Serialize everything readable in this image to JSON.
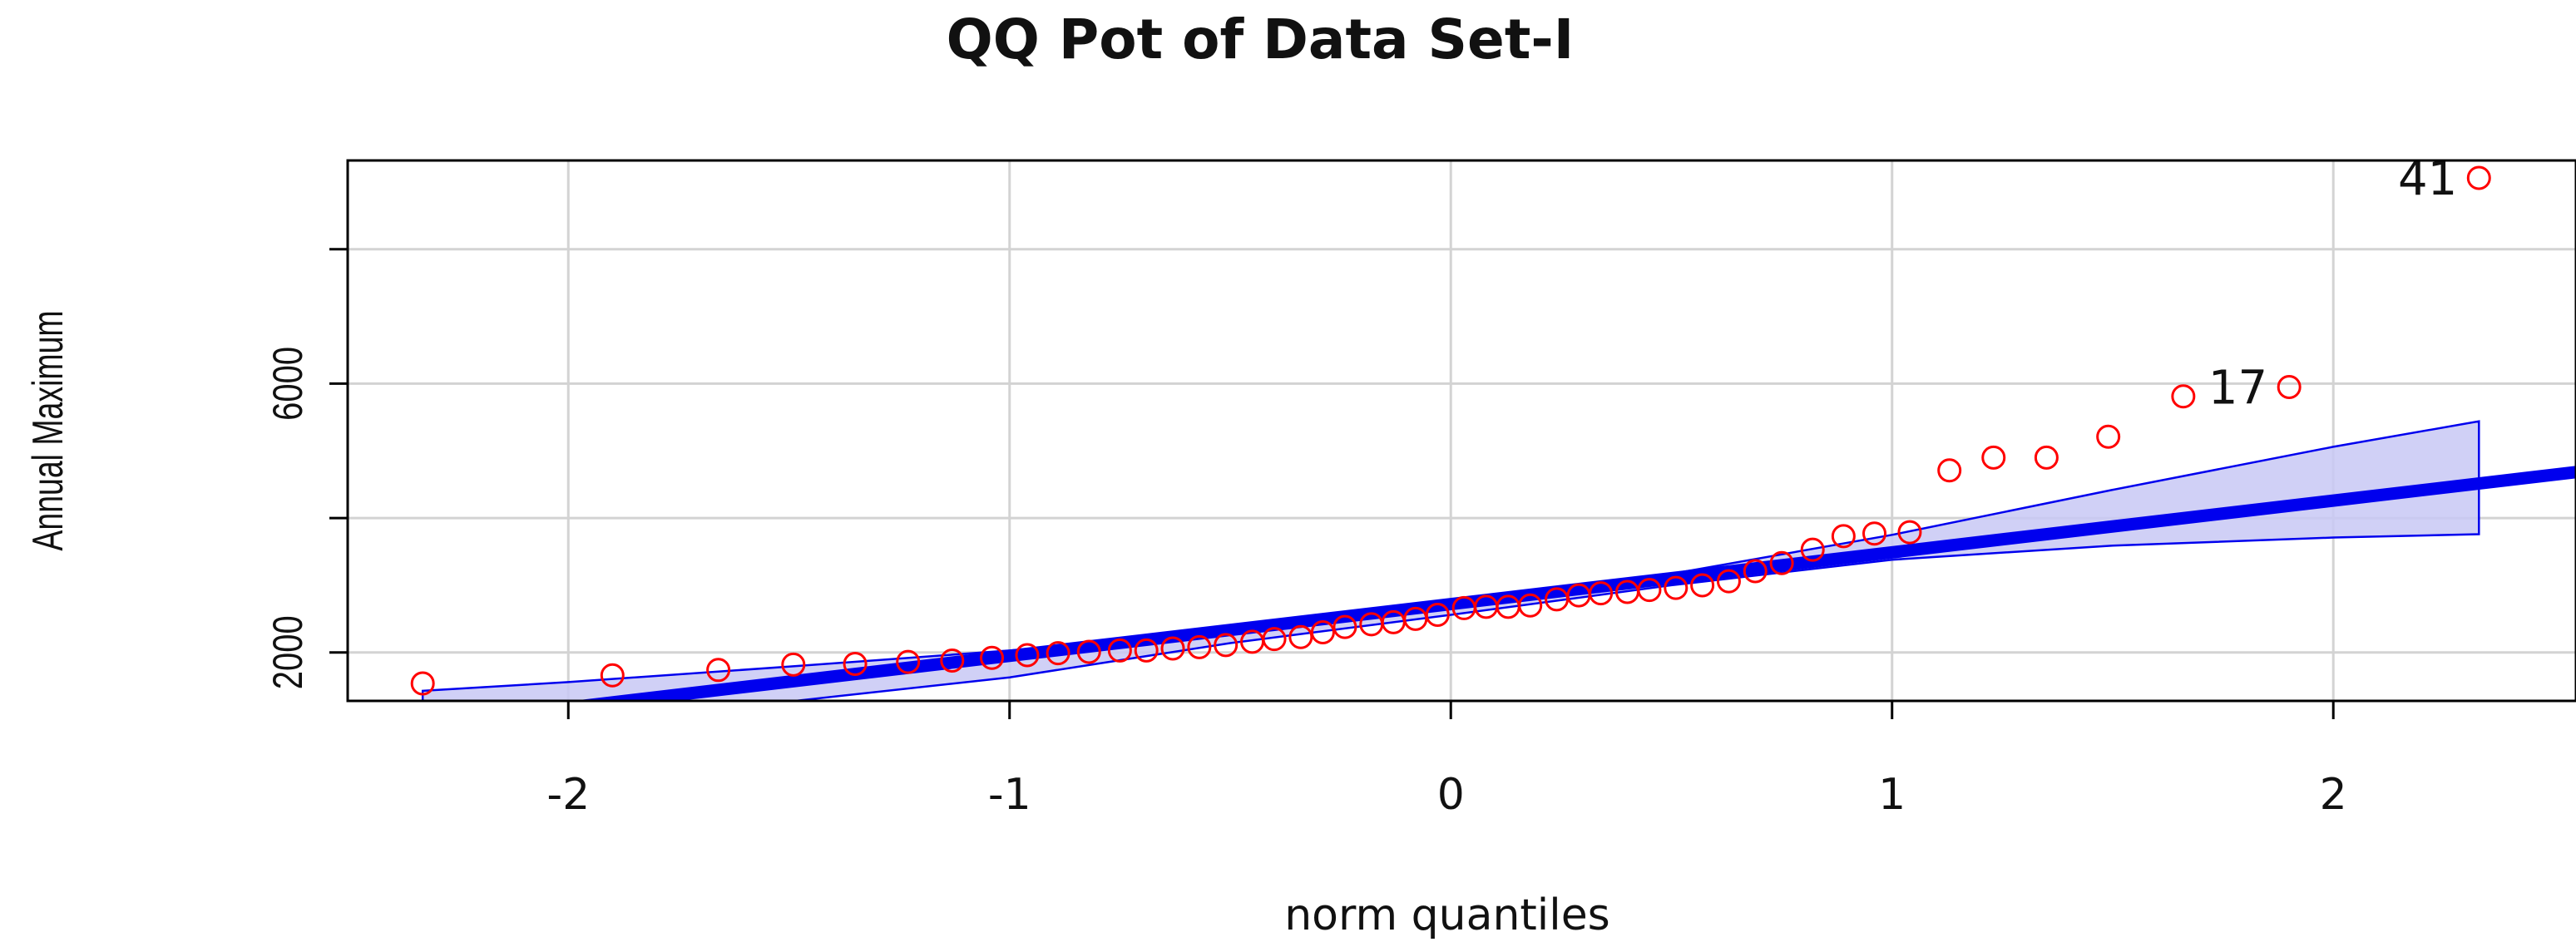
{
  "chart_data": {
    "type": "scatter",
    "title": "QQ Pot of Data Set-I",
    "xlabel": "norm quantiles",
    "ylabel": "Annual Maximum",
    "xlim": [
      -2.5,
      2.55
    ],
    "ylim": [
      1280,
      9320
    ],
    "xticks": [
      -2,
      -1,
      0,
      1,
      2
    ],
    "yticks": [
      2000,
      6000
    ],
    "ygrid": [
      2000,
      4000,
      6000,
      8000
    ],
    "grid": true,
    "colors": {
      "points": "#ff0000",
      "line": "#0000ee",
      "band_fill": "#c8c8f5",
      "band_edge": "#0000ee",
      "grid": "#d3d3d3"
    },
    "reference_line": {
      "intercept": 2720,
      "slope": 770
    },
    "envelope": {
      "x": [
        -2.33,
        -2.0,
        -1.5,
        -1.0,
        -0.5,
        0.0,
        0.5,
        1.0,
        1.5,
        2.0,
        2.33
      ],
      "upper": [
        1430,
        1560,
        1790,
        2030,
        2330,
        2720,
        3170,
        3750,
        4420,
        5060,
        5440
      ],
      "lower": [
        920,
        990,
        1270,
        1630,
        2140,
        2560,
        3000,
        3380,
        3590,
        3710,
        3760
      ]
    },
    "points": {
      "x": [
        -2.33,
        -1.9,
        -1.66,
        -1.49,
        -1.35,
        -1.23,
        -1.13,
        -1.04,
        -0.96,
        -0.89,
        -0.82,
        -0.75,
        -0.69,
        -0.63,
        -0.57,
        -0.51,
        -0.45,
        -0.4,
        -0.34,
        -0.29,
        -0.24,
        -0.18,
        -0.13,
        -0.08,
        -0.03,
        0.03,
        0.08,
        0.13,
        0.18,
        0.24,
        0.29,
        0.34,
        0.4,
        0.45,
        0.51,
        0.57,
        0.63,
        0.69,
        0.75,
        0.82,
        0.89,
        0.96,
        1.04,
        1.13,
        1.23,
        1.35,
        1.49,
        1.66,
        1.9,
        2.33
      ],
      "y": [
        1540,
        1660,
        1740,
        1820,
        1830,
        1860,
        1880,
        1920,
        1960,
        1990,
        2010,
        2030,
        2030,
        2060,
        2080,
        2110,
        2160,
        2200,
        2230,
        2300,
        2380,
        2420,
        2450,
        2500,
        2560,
        2660,
        2680,
        2680,
        2700,
        2790,
        2850,
        2880,
        2900,
        2930,
        2960,
        3000,
        3060,
        3210,
        3330,
        3530,
        3730,
        3770,
        3790,
        4710,
        4900,
        4900,
        5210,
        5810,
        5950,
        9060
      ]
    },
    "point_labels": [
      {
        "text": "41",
        "x": 2.33,
        "y": 9060
      },
      {
        "text": "17",
        "x": 1.9,
        "y": 5950
      }
    ]
  }
}
